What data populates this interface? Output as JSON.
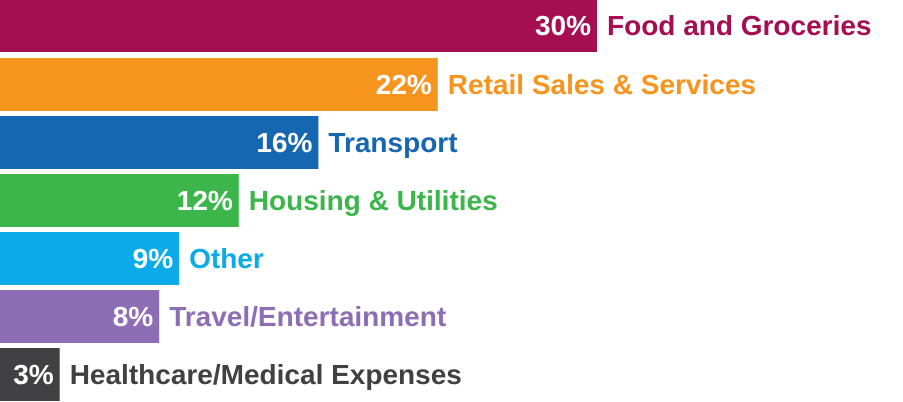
{
  "chart_data": {
    "type": "bar",
    "orientation": "horizontal",
    "categories": [
      "Food and Groceries",
      "Retail Sales & Services",
      "Transport",
      "Housing & Utilities",
      "Other",
      "Travel/Entertainment",
      "Healthcare/Medical Expenses"
    ],
    "values": [
      30,
      22,
      16,
      12,
      9,
      8,
      3
    ],
    "value_labels": [
      "30%",
      "22%",
      "16%",
      "12%",
      "9%",
      "8%",
      "3%"
    ],
    "colors": [
      "#a50e50",
      "#f7941d",
      "#1467b0",
      "#3cb54a",
      "#0aabe8",
      "#8d6eb4",
      "#414042"
    ]
  }
}
